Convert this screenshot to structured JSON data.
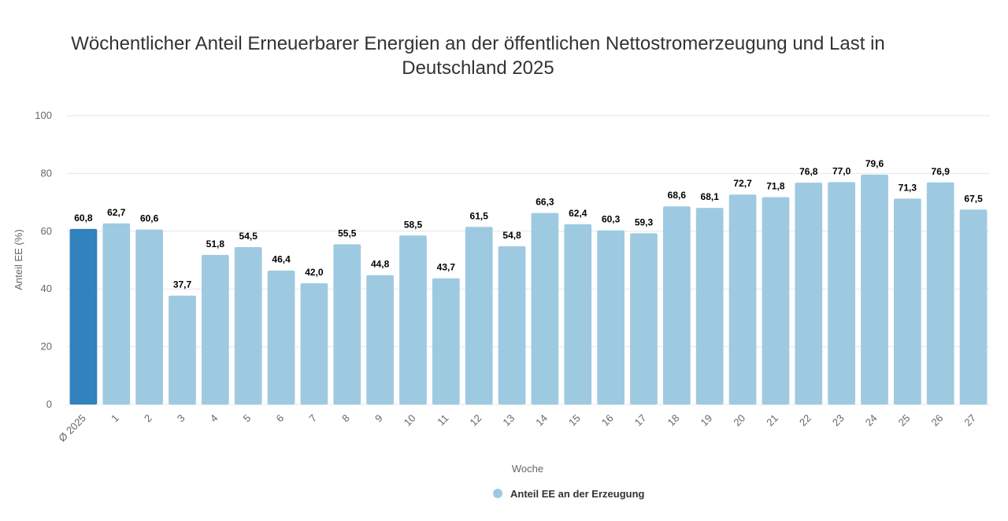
{
  "chart_data": {
    "type": "bar",
    "title": "Wöchentlicher Anteil Erneuerbarer Energien an der öffentlichen Nettostromerzeugung und Last in Deutschland 2025",
    "title_lines": [
      "Wöchentlicher Anteil Erneuerbarer Energien an der öffentlichen Nettostromerzeugung und Last in",
      "Deutschland 2025"
    ],
    "xlabel": "Woche",
    "ylabel": "Anteil EE (%)",
    "ylim": [
      0,
      100
    ],
    "yticks": [
      "0",
      "20",
      "40",
      "60",
      "80",
      "100"
    ],
    "grid": true,
    "legend_position": "bottom-center",
    "categories": [
      "Ø 2025",
      "1",
      "2",
      "3",
      "4",
      "5",
      "6",
      "7",
      "8",
      "9",
      "10",
      "11",
      "12",
      "13",
      "14",
      "15",
      "16",
      "17",
      "18",
      "19",
      "20",
      "21",
      "22",
      "23",
      "24",
      "25",
      "26",
      "27"
    ],
    "series": [
      {
        "name": "Anteil EE an der Erzeugung",
        "color": "#9ecae1",
        "highlight_color": "#3182bd",
        "highlight_index": 0,
        "values": [
          60.8,
          62.7,
          60.6,
          37.7,
          51.8,
          54.5,
          46.4,
          42.0,
          55.5,
          44.8,
          58.5,
          43.7,
          61.5,
          54.8,
          66.3,
          62.4,
          60.3,
          59.3,
          68.6,
          68.1,
          72.7,
          71.8,
          76.8,
          77.0,
          79.6,
          71.3,
          76.9,
          67.5
        ],
        "labels": [
          "60,8",
          "62,7",
          "60,6",
          "37,7",
          "51,8",
          "54,5",
          "46,4",
          "42,0",
          "55,5",
          "44,8",
          "58,5",
          "43,7",
          "61,5",
          "54,8",
          "66,3",
          "62,4",
          "60,3",
          "59,3",
          "68,6",
          "68,1",
          "72,7",
          "71,8",
          "76,8",
          "77,0",
          "79,6",
          "71,3",
          "76,9",
          "67,5"
        ]
      }
    ]
  }
}
